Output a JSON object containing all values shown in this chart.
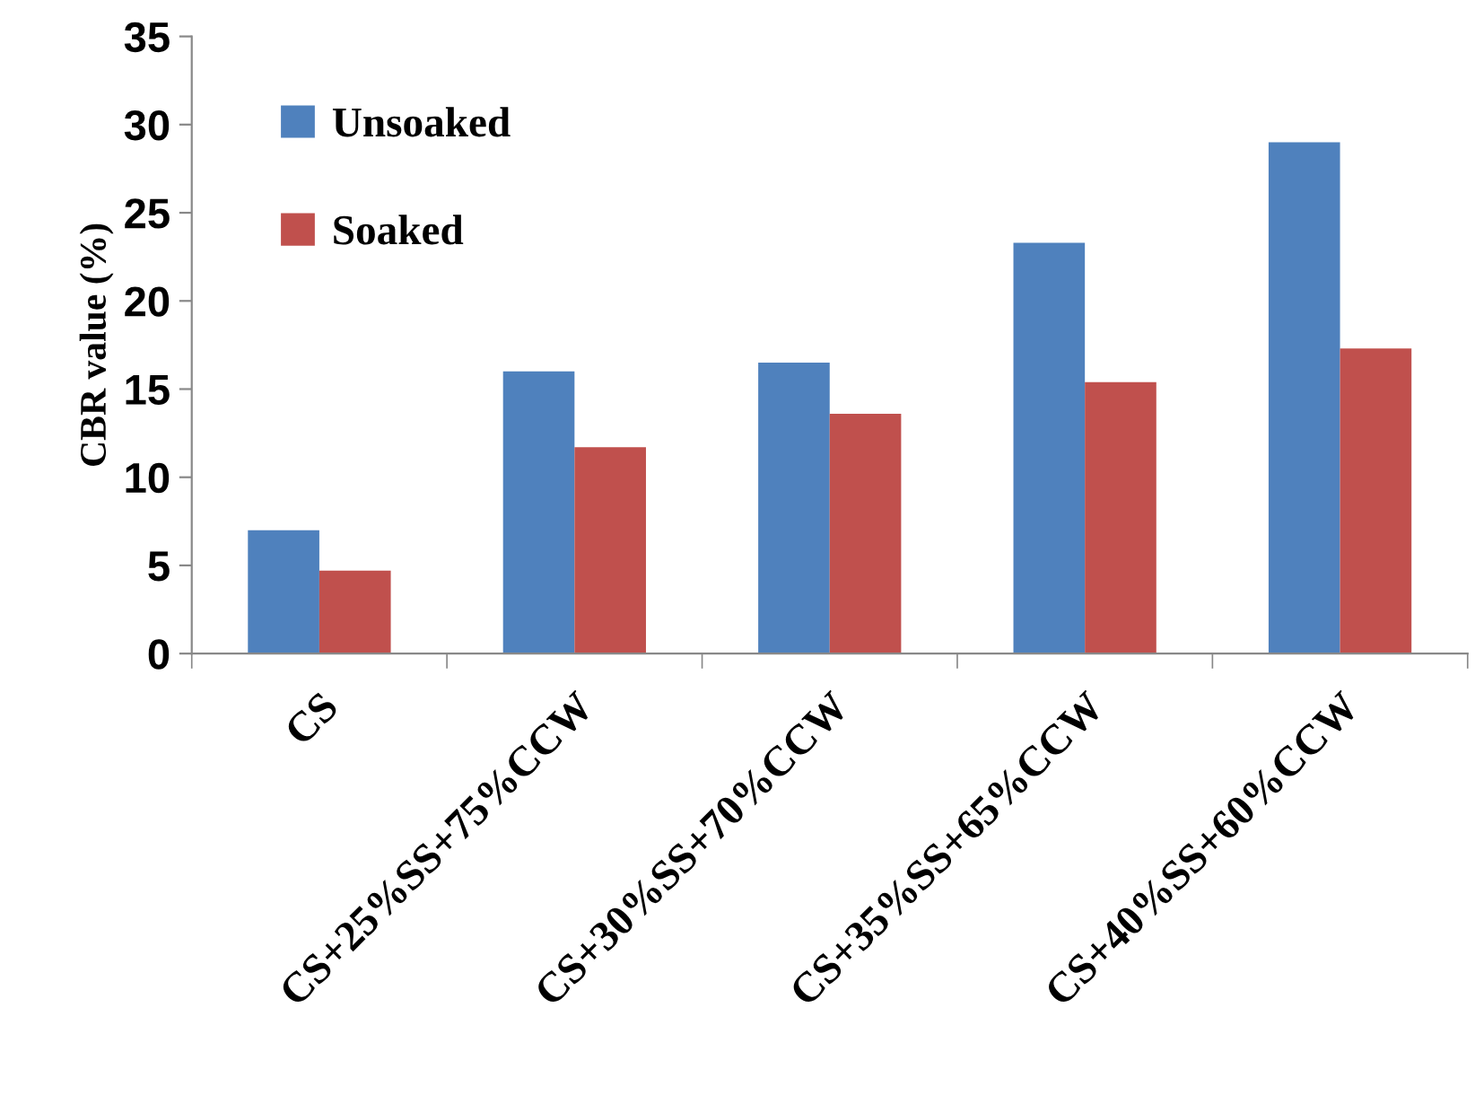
{
  "chart_data": {
    "type": "bar",
    "ylabel": "CBR value (%)",
    "categories": [
      "CS",
      "CS+25%SS+75%CCW",
      "CS+30%SS+70%CCW",
      "CS+35%SS+65%CCW",
      "CS+40%SS+60%CCW"
    ],
    "series": [
      {
        "name": "Unsoaked",
        "color": "#4f81bd",
        "values": [
          7,
          16,
          16.5,
          23.3,
          29
        ]
      },
      {
        "name": "Soaked",
        "color": "#c0504d",
        "values": [
          4.7,
          11.7,
          13.6,
          15.4,
          17.3
        ]
      }
    ],
    "ylim": [
      0,
      35
    ],
    "yticks": [
      0,
      5,
      10,
      15,
      20,
      25,
      30,
      35
    ],
    "grid": false,
    "legend": "top left"
  }
}
